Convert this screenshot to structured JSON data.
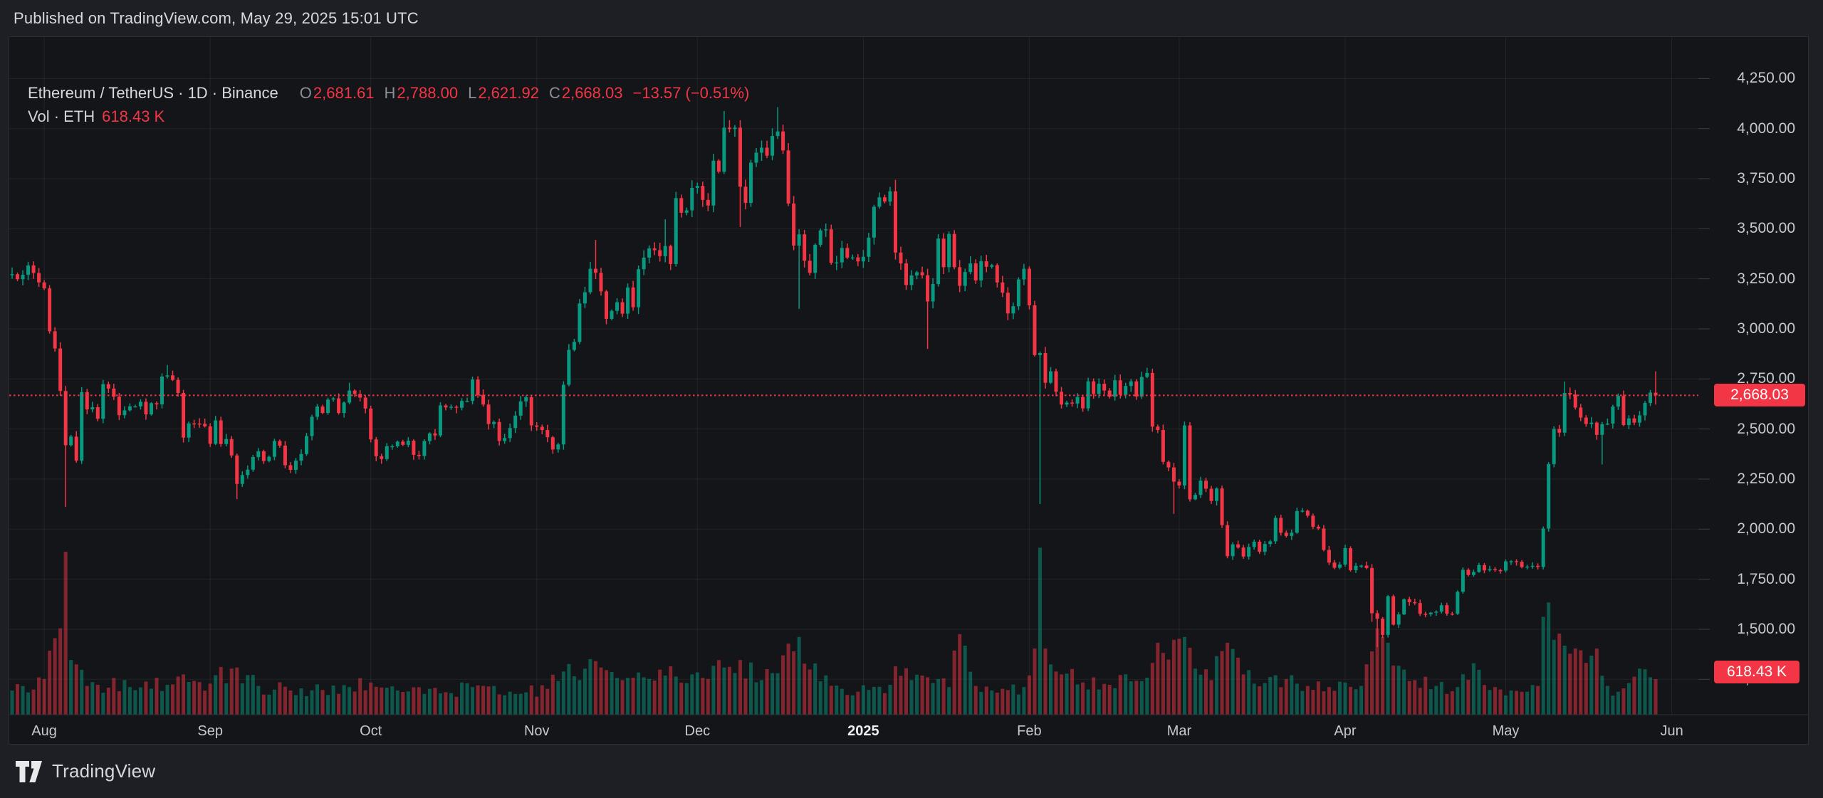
{
  "published_bar": {
    "text": "Published on TradingView.com, May 29, 2025 15:01 UTC"
  },
  "header": {
    "title": "Ethereum / TetherUS · 1D · Binance",
    "ohlc": [
      {
        "label": "O",
        "value": "2,681.61"
      },
      {
        "label": "H",
        "value": "2,788.00"
      },
      {
        "label": "L",
        "value": "2,621.92"
      },
      {
        "label": "C",
        "value": "2,668.03"
      }
    ],
    "change": "−13.57 (−0.51%)",
    "volume_label": "Vol · ETH",
    "volume_value": "618.43 K"
  },
  "price_axis": {
    "price_badge": "2,668.03",
    "volume_badge": "618.43 K",
    "ticks": [
      {
        "text": "4,250.00",
        "value": 4250
      },
      {
        "text": "4,000.00",
        "value": 4000
      },
      {
        "text": "3,750.00",
        "value": 3750
      },
      {
        "text": "3,500.00",
        "value": 3500
      },
      {
        "text": "3,250.00",
        "value": 3250
      },
      {
        "text": "3,000.00",
        "value": 3000
      },
      {
        "text": "2,750.00",
        "value": 2750
      },
      {
        "text": "2,500.00",
        "value": 2500
      },
      {
        "text": "2,250.00",
        "value": 2250
      },
      {
        "text": "2,000.00",
        "value": 2000
      },
      {
        "text": "1,750.00",
        "value": 1750
      },
      {
        "text": "1,500.00",
        "value": 1500
      },
      {
        "text": "1,250.00",
        "value": 1250
      }
    ]
  },
  "time_axis": {
    "labels": [
      {
        "text": "Aug",
        "day": 6,
        "bold": false
      },
      {
        "text": "Sep",
        "day": 37,
        "bold": false
      },
      {
        "text": "Oct",
        "day": 67,
        "bold": false
      },
      {
        "text": "Nov",
        "day": 98,
        "bold": false
      },
      {
        "text": "Dec",
        "day": 128,
        "bold": false
      },
      {
        "text": "2025",
        "day": 159,
        "bold": true
      },
      {
        "text": "Feb",
        "day": 190,
        "bold": false
      },
      {
        "text": "Mar",
        "day": 218,
        "bold": false
      },
      {
        "text": "Apr",
        "day": 249,
        "bold": false
      },
      {
        "text": "May",
        "day": 279,
        "bold": false
      },
      {
        "text": "Jun",
        "day": 310,
        "bold": false
      }
    ]
  },
  "footer": {
    "brand": "TradingView"
  },
  "colors": {
    "up": "#089981",
    "down": "#f23645",
    "grid": "rgba(255,255,255,0.065)",
    "tick": "rgba(255,255,255,0.18)",
    "dotted_line": "#f23645",
    "badge": "#f23645",
    "pane_border": "#2b2e35"
  },
  "chart_data": {
    "type": "candlestick+volume",
    "title": "Ethereum / TetherUS · 1D · Binance",
    "interval": "1D",
    "last_price_line": 2668.03,
    "last_candle": {
      "open": 2681.61,
      "high": 2788.0,
      "low": 2621.92,
      "close": 2668.03
    },
    "last_volume_k": 618.43,
    "ylim": [
      1150,
      4450
    ],
    "y_ticks": [
      4250,
      4000,
      3750,
      3500,
      3250,
      3000,
      2750,
      2500,
      2250,
      2000,
      1750,
      1500,
      1250
    ],
    "days": 308,
    "first_open": 3268,
    "closes": [
      3273,
      3248,
      3270,
      3317,
      3279,
      3232,
      3202,
      2988,
      2902,
      2690,
      2419,
      2462,
      2342,
      2684,
      2598,
      2609,
      2551,
      2724,
      2702,
      2661,
      2569,
      2593,
      2613,
      2613,
      2636,
      2573,
      2629,
      2623,
      2762,
      2768,
      2745,
      2680,
      2457,
      2528,
      2527,
      2526,
      2513,
      2426,
      2543,
      2425,
      2450,
      2368,
      2226,
      2270,
      2297,
      2360,
      2389,
      2340,
      2361,
      2440,
      2417,
      2319,
      2296,
      2342,
      2375,
      2465,
      2561,
      2612,
      2580,
      2647,
      2653,
      2580,
      2632,
      2692,
      2675,
      2657,
      2602,
      2448,
      2364,
      2350,
      2414,
      2414,
      2437,
      2421,
      2441,
      2371,
      2365,
      2440,
      2478,
      2468,
      2618,
      2608,
      2611,
      2606,
      2640,
      2640,
      2747,
      2670,
      2622,
      2525,
      2535,
      2440,
      2455,
      2505,
      2567,
      2638,
      2659,
      2518,
      2511,
      2495,
      2459,
      2398,
      2423,
      2721,
      2895,
      2935,
      3127,
      3183,
      3300,
      3280,
      3187,
      3050,
      3090,
      3133,
      3076,
      3207,
      3108,
      3298,
      3356,
      3402,
      3393,
      3363,
      3414,
      3324,
      3653,
      3580,
      3592,
      3704,
      3714,
      3644,
      3616,
      3840,
      3785,
      4005,
      3998,
      4005,
      3710,
      3629,
      3830,
      3880,
      3905,
      3865,
      3963,
      3986,
      3891,
      3626,
      3416,
      3472,
      3340,
      3280,
      3420,
      3492,
      3497,
      3330,
      3332,
      3404,
      3356,
      3357,
      3337,
      3360,
      3456,
      3610,
      3657,
      3636,
      3687,
      3381,
      3327,
      3219,
      3267,
      3283,
      3268,
      3137,
      3224,
      3451,
      3308,
      3474,
      3308,
      3215,
      3284,
      3327,
      3242,
      3338,
      3310,
      3318,
      3232,
      3181,
      3077,
      3113,
      3247,
      3300,
      3118,
      2869,
      2879,
      2731,
      2788,
      2686,
      2622,
      2632,
      2627,
      2660,
      2603,
      2738,
      2675,
      2726,
      2692,
      2661,
      2743,
      2671,
      2715,
      2738,
      2662,
      2760,
      2780,
      2512,
      2495,
      2336,
      2308,
      2237,
      2218,
      2518,
      2149,
      2171,
      2242,
      2202,
      2141,
      2203,
      2020,
      1865,
      1924,
      1908,
      1863,
      1911,
      1937,
      1887,
      1926,
      1939,
      2056,
      1982,
      1966,
      1982,
      2090,
      2092,
      2067,
      2012,
      2003,
      1896,
      1833,
      1807,
      1823,
      1905,
      1795,
      1817,
      1818,
      1806,
      1580,
      1553,
      1472,
      1665,
      1523,
      1574,
      1650,
      1635,
      1631,
      1577,
      1575,
      1583,
      1588,
      1620,
      1578,
      1577,
      1687,
      1797,
      1771,
      1786,
      1820,
      1794,
      1800,
      1795,
      1793,
      1839,
      1840,
      1837,
      1810,
      1813,
      1817,
      1811,
      2003,
      2325,
      2500,
      2482,
      2680,
      2672,
      2607,
      2557,
      2525,
      2532,
      2471,
      2524,
      2527,
      2612,
      2665,
      2520,
      2553,
      2532,
      2568,
      2630,
      2682,
      2668.03
    ],
    "wick_overrides": [
      {
        "d": 10,
        "low": 2111
      },
      {
        "d": 29,
        "high": 2820
      },
      {
        "d": 42,
        "low": 2150
      },
      {
        "d": 63,
        "high": 2731
      },
      {
        "d": 109,
        "high": 3444
      },
      {
        "d": 122,
        "high": 3547
      },
      {
        "d": 133,
        "high": 4088
      },
      {
        "d": 136,
        "low": 3509
      },
      {
        "d": 143,
        "high": 4107
      },
      {
        "d": 147,
        "low": 3100
      },
      {
        "d": 165,
        "high": 3744
      },
      {
        "d": 171,
        "low": 2900
      },
      {
        "d": 192,
        "low": 2125
      },
      {
        "d": 217,
        "low": 2076
      },
      {
        "d": 254,
        "low": 1537
      },
      {
        "d": 255,
        "low": 1411
      },
      {
        "d": 290,
        "high": 2737
      },
      {
        "d": 297,
        "low": 2323
      },
      {
        "d": 307,
        "high": 2788,
        "low": 2621.92
      }
    ],
    "volume_keyframes_k": [
      [
        0,
        420
      ],
      [
        6,
        620
      ],
      [
        9,
        1500
      ],
      [
        10,
        2830
      ],
      [
        11,
        950
      ],
      [
        13,
        780
      ],
      [
        16,
        520
      ],
      [
        22,
        480
      ],
      [
        29,
        520
      ],
      [
        32,
        700
      ],
      [
        37,
        540
      ],
      [
        42,
        820
      ],
      [
        46,
        500
      ],
      [
        52,
        420
      ],
      [
        58,
        430
      ],
      [
        63,
        480
      ],
      [
        67,
        560
      ],
      [
        72,
        420
      ],
      [
        80,
        370
      ],
      [
        86,
        480
      ],
      [
        93,
        400
      ],
      [
        100,
        450
      ],
      [
        104,
        880
      ],
      [
        107,
        800
      ],
      [
        110,
        820
      ],
      [
        114,
        600
      ],
      [
        118,
        650
      ],
      [
        122,
        680
      ],
      [
        127,
        700
      ],
      [
        129,
        640
      ],
      [
        131,
        850
      ],
      [
        133,
        820
      ],
      [
        136,
        950
      ],
      [
        140,
        600
      ],
      [
        143,
        720
      ],
      [
        146,
        1100
      ],
      [
        147,
        1350
      ],
      [
        151,
        580
      ],
      [
        155,
        450
      ],
      [
        158,
        400
      ],
      [
        160,
        430
      ],
      [
        164,
        520
      ],
      [
        165,
        840
      ],
      [
        168,
        600
      ],
      [
        171,
        650
      ],
      [
        175,
        480
      ],
      [
        177,
        1400
      ],
      [
        178,
        1200
      ],
      [
        180,
        500
      ],
      [
        185,
        450
      ],
      [
        189,
        480
      ],
      [
        191,
        1150
      ],
      [
        192,
        2900
      ],
      [
        193,
        1150
      ],
      [
        196,
        700
      ],
      [
        200,
        560
      ],
      [
        205,
        520
      ],
      [
        209,
        580
      ],
      [
        213,
        900
      ],
      [
        214,
        1250
      ],
      [
        217,
        1300
      ],
      [
        219,
        1350
      ],
      [
        221,
        800
      ],
      [
        224,
        600
      ],
      [
        227,
        1250
      ],
      [
        230,
        700
      ],
      [
        234,
        550
      ],
      [
        238,
        620
      ],
      [
        242,
        500
      ],
      [
        246,
        480
      ],
      [
        249,
        560
      ],
      [
        252,
        500
      ],
      [
        254,
        1100
      ],
      [
        255,
        1500
      ],
      [
        256,
        1350
      ],
      [
        257,
        1250
      ],
      [
        259,
        850
      ],
      [
        262,
        600
      ],
      [
        266,
        500
      ],
      [
        270,
        480
      ],
      [
        274,
        780
      ],
      [
        277,
        480
      ],
      [
        280,
        420
      ],
      [
        283,
        400
      ],
      [
        285,
        500
      ],
      [
        286,
        1700
      ],
      [
        287,
        1950
      ],
      [
        288,
        1300
      ],
      [
        290,
        1200
      ],
      [
        292,
        1150
      ],
      [
        294,
        900
      ],
      [
        296,
        1150
      ],
      [
        298,
        500
      ],
      [
        300,
        400
      ],
      [
        302,
        550
      ],
      [
        304,
        800
      ],
      [
        306,
        650
      ],
      [
        307,
        618.43
      ]
    ]
  }
}
